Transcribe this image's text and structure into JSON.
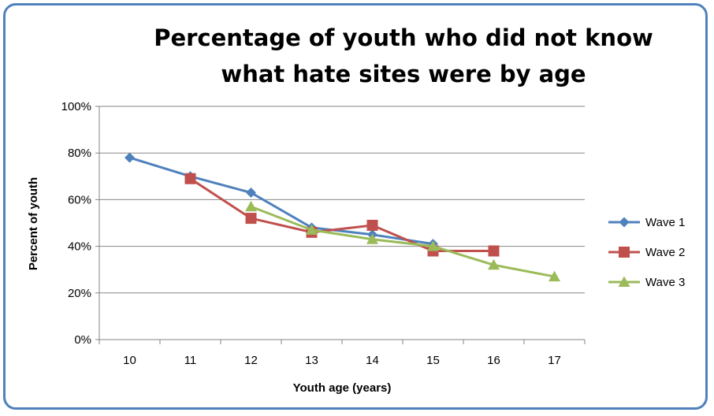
{
  "chart_data": {
    "type": "line",
    "title_lines": [
      "Percentage of youth who did not know",
      "what hate sites were by age"
    ],
    "xlabel": "Youth age (years)",
    "ylabel": "Percent of youth",
    "categories": [
      "10",
      "11",
      "12",
      "13",
      "14",
      "15",
      "16",
      "17"
    ],
    "y_ticks": [
      "0%",
      "20%",
      "40%",
      "60%",
      "80%",
      "100%"
    ],
    "ylim": [
      0,
      100
    ],
    "grid": "horizontal",
    "legend_position": "right",
    "series": [
      {
        "name": "Wave 1",
        "color": "#4f81bd",
        "marker": "diamond",
        "values": [
          78,
          70,
          63,
          48,
          45,
          41,
          null,
          null
        ]
      },
      {
        "name": "Wave 2",
        "color": "#c0504d",
        "marker": "square",
        "values": [
          null,
          69,
          52,
          46,
          49,
          38,
          38,
          null
        ]
      },
      {
        "name": "Wave 3",
        "color": "#9bbb59",
        "marker": "triangle",
        "values": [
          null,
          null,
          57,
          47,
          43,
          40,
          32,
          27
        ]
      }
    ]
  }
}
